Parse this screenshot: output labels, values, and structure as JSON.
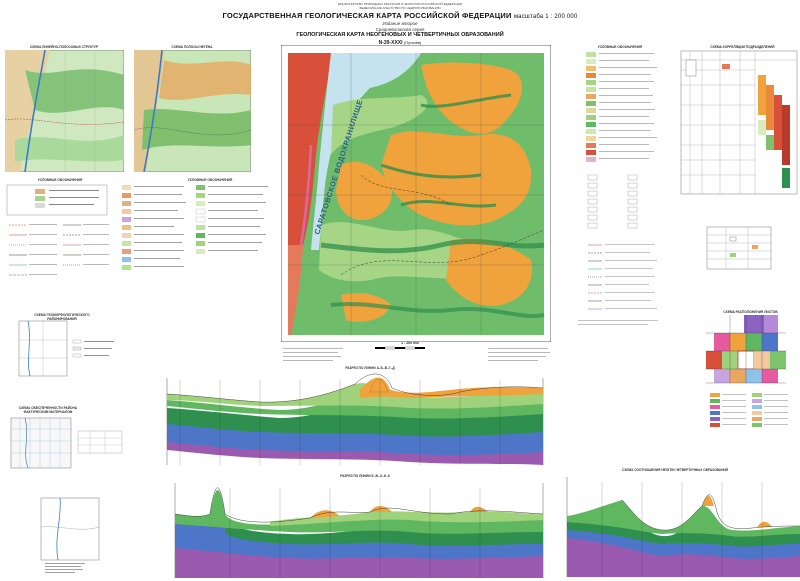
{
  "header": {
    "ministry_line1": "МИНИСТЕРСТВО ПРИРОДНЫХ РЕСУРСОВ И ЭКОЛОГИИ РОССИЙСКОЙ ФЕДЕРАЦИИ",
    "ministry_line2": "ФЕДЕРАЛЬНОЕ АГЕНТСТВО ПО НЕДРОПОЛЬЗОВАНИЮ",
    "title": "ГОСУДАРСТВЕННАЯ ГЕОЛОГИЧЕСКАЯ КАРТА РОССИЙСКОЙ ФЕДЕРАЦИИ",
    "scale": "масштаба 1 : 200 000",
    "edition": "Издание второе",
    "series": "Средневолжская серия",
    "map_title": "ГЕОЛОГИЧЕСКАЯ КАРТА НЕОГЕНОВЫХ И ЧЕТВЕРТИЧНЫХ ОБРАЗОВАНИЙ",
    "sheet": "N-39-XXXI",
    "sheet_name": "(Пугачёв)"
  },
  "map": {
    "reservoir_label": "САРАТОВСКОЕ ВОДОХРАНИЛИЩЕ",
    "scale_label": "1 : 200 000"
  },
  "side_panels": {
    "schema_left": "СХЕМА ЛИНЕЙНО-ПОЛОСОВЫХ СТРУКТУР",
    "schema_right": "СХЕМА ПОЛОСЫ НЕГЕНА",
    "legend_left": "УСЛОВНЫЕ ОБОЗНАЧЕНИЯ",
    "legend_main": "УСЛОВНЫЕ ОБОЗНАЧЕНИЯ",
    "legend_right": "УСЛОВНЫЕ ОБОЗНАЧЕНИЯ",
    "stratigraphy": "СХЕМА КОРРЕЛЯЦИИ ПОДРАЗДЕЛЕНИЙ",
    "index_map": "СХЕМА РАСПОЛОЖЕНИЯ ЛИСТОВ",
    "schema_small1": "СХЕМА ГЕОМОРФОЛОГИЧЕСКОГО РАЙОНИРОВАНИЯ",
    "schema_small2": "СХЕМА ОБЕСПЕЧЕННОСТИ РАЙОНА ФАКТИЧЕСКИМ МАТЕРИАЛОМ"
  },
  "sections": {
    "section1_title": "РАЗРЕЗ ПО ЛИНИИ А–Б–В–Г–Д",
    "section2_title": "РАЗРЕЗ ПО ЛИНИИ Е–Ж–З–И–К",
    "section3_title": "СХЕМА СООТНОШЕНИЯ НЕОГЕН-ЧЕТВЕРТИЧНЫХ ОБРАЗОВАНИЙ"
  },
  "colors": {
    "orange": "#f0a23c",
    "light_green": "#9fd27a",
    "mid_green": "#5fb760",
    "dark_green": "#2f8f4e",
    "water": "#c5e2ef",
    "blue": "#4d76c8",
    "purple": "#9a5ab0",
    "red": "#d9503a",
    "pink": "#d96aa0"
  }
}
